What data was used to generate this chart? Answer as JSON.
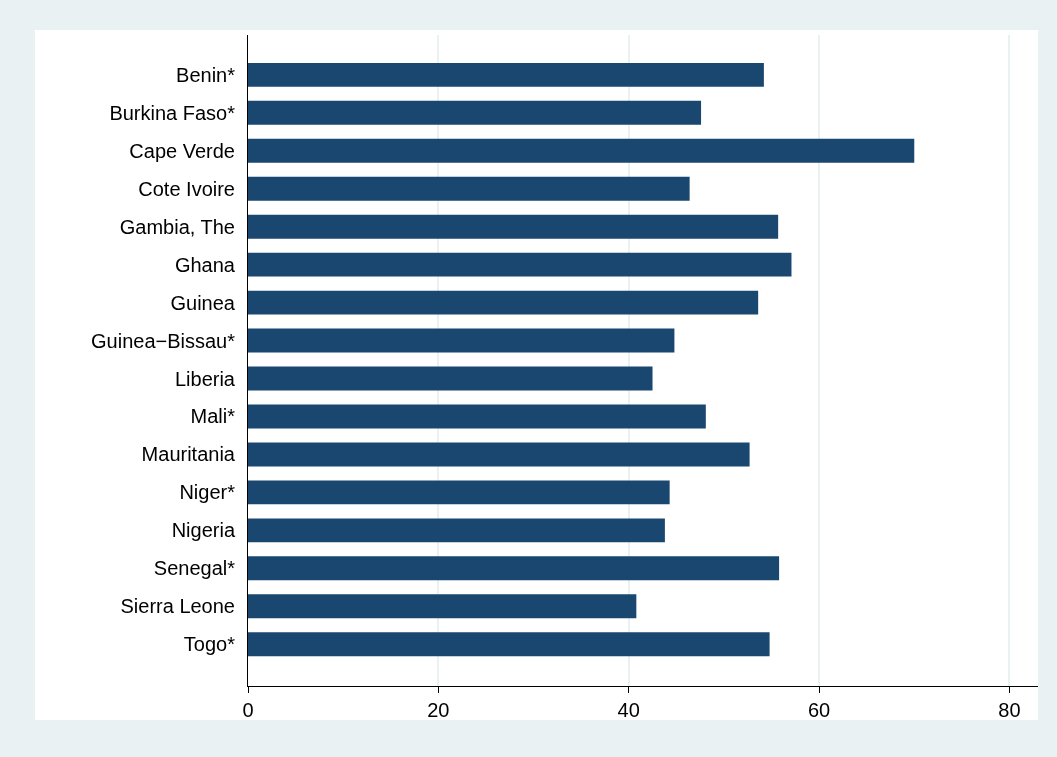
{
  "chart_data": {
    "type": "bar",
    "orientation": "horizontal",
    "categories": [
      "Benin*",
      "Burkina Faso*",
      "Cape Verde",
      "Cote Ivoire",
      "Gambia, The",
      "Ghana",
      "Guinea",
      "Guinea−Bissau*",
      "Liberia",
      "Mali*",
      "Mauritania",
      "Niger*",
      "Nigeria",
      "Senegal*",
      "Sierra Leone",
      "Togo*"
    ],
    "values": [
      54.2,
      47.6,
      70.0,
      46.4,
      55.7,
      57.1,
      53.6,
      44.8,
      42.5,
      48.1,
      52.7,
      44.3,
      43.8,
      55.8,
      40.8,
      54.8
    ],
    "color": "#1a476f",
    "xlim": [
      0,
      83
    ],
    "xticks": [
      0,
      20,
      40,
      60,
      80
    ],
    "grid": "x"
  }
}
